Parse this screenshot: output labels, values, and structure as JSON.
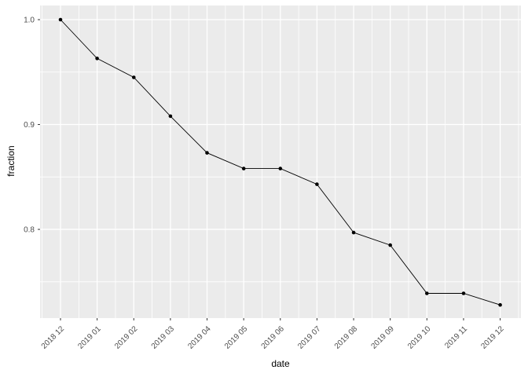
{
  "chart_data": {
    "type": "line",
    "title": "",
    "xlabel": "date",
    "ylabel": "fraction",
    "categories": [
      "2018 12",
      "2019 01",
      "2019 02",
      "2019 03",
      "2019 04",
      "2019 05",
      "2019 06",
      "2019 07",
      "2019 08",
      "2019 09",
      "2019 10",
      "2019 11",
      "2019 12"
    ],
    "series": [
      {
        "name": "fraction",
        "values": [
          1.0,
          0.963,
          0.945,
          0.908,
          0.873,
          0.858,
          0.858,
          0.843,
          0.797,
          0.785,
          0.739,
          0.739,
          0.728
        ]
      }
    ],
    "y_ticks": [
      1.0,
      0.9,
      0.8
    ],
    "y_tick_labels": [
      "1.0",
      "0.9",
      "0.8"
    ],
    "y_minor_ticks": [
      0.95,
      0.85,
      0.75
    ],
    "ylim": [
      0.7154,
      1.0135
    ],
    "grid": "major-and-minor",
    "legend": "none",
    "marker": "filled-circle",
    "colors": {
      "panel_background": "#EBEBEB",
      "gridline": "#FFFFFF",
      "line": "#000000",
      "point": "#000000",
      "tick_label": "#4D4D4D",
      "tick_mark": "#333333",
      "axis_title": "#000000",
      "figure_background": "#FFFFFF"
    }
  }
}
